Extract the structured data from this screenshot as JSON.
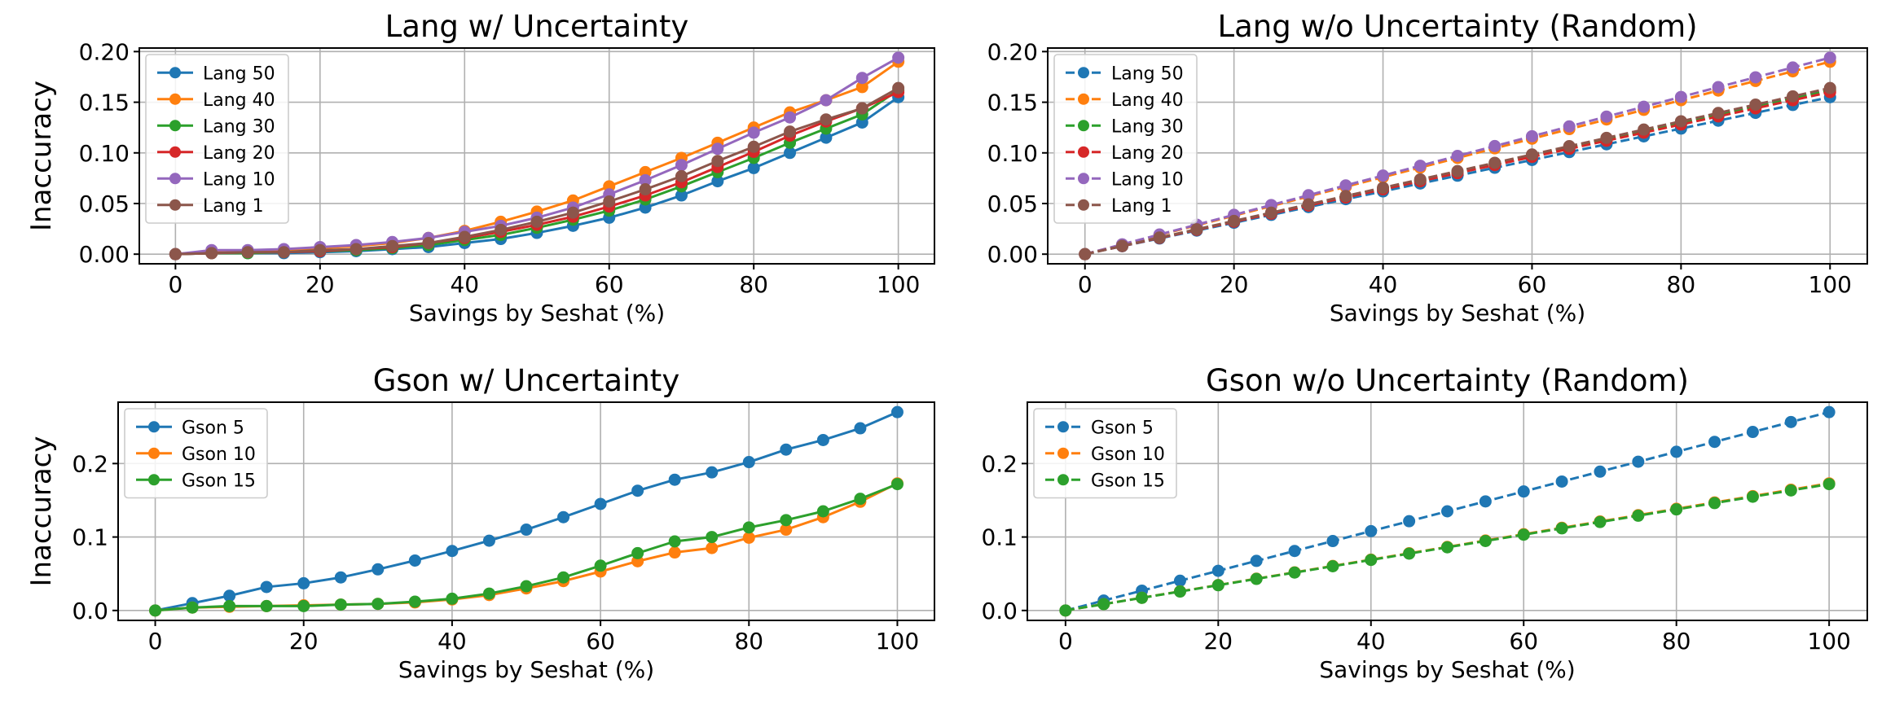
{
  "colors": {
    "blue": "#1f77b4",
    "orange": "#ff7f0e",
    "green": "#2ca02c",
    "red": "#d62728",
    "purple": "#9467bd",
    "brown": "#8c564b"
  },
  "chart_data": [
    {
      "type": "line",
      "title": "Lang w/ Uncertainty",
      "xlabel": "Savings by Seshat (%)",
      "ylabel": "Inaccuracy",
      "xlim": [
        -5,
        105
      ],
      "ylim": [
        -0.0095,
        0.2035
      ],
      "xticks": [
        0,
        20,
        40,
        60,
        80,
        100
      ],
      "yticks": [
        0.0,
        0.05,
        0.1,
        0.15,
        0.2
      ],
      "ytick_labels": [
        "0.00",
        "0.05",
        "0.10",
        "0.15",
        "0.20"
      ],
      "grid": true,
      "legend_position": "upper-left",
      "dashed": false,
      "x": [
        0,
        5,
        10,
        15,
        20,
        25,
        30,
        35,
        40,
        45,
        50,
        55,
        60,
        65,
        70,
        75,
        80,
        85,
        90,
        95,
        100
      ],
      "series": [
        {
          "name": "Lang 50",
          "color": "blue",
          "values": [
            0.0,
            0.001,
            0.001,
            0.001,
            0.002,
            0.003,
            0.005,
            0.007,
            0.011,
            0.015,
            0.021,
            0.028,
            0.036,
            0.046,
            0.058,
            0.072,
            0.085,
            0.1,
            0.115,
            0.13,
            0.155
          ]
        },
        {
          "name": "Lang 40",
          "color": "orange",
          "values": [
            0.0,
            0.003,
            0.003,
            0.004,
            0.006,
            0.008,
            0.011,
            0.016,
            0.023,
            0.032,
            0.042,
            0.053,
            0.067,
            0.081,
            0.095,
            0.11,
            0.125,
            0.14,
            0.152,
            0.165,
            0.19
          ]
        },
        {
          "name": "Lang 30",
          "color": "green",
          "values": [
            0.0,
            0.001,
            0.001,
            0.002,
            0.003,
            0.004,
            0.006,
            0.009,
            0.014,
            0.019,
            0.026,
            0.034,
            0.043,
            0.054,
            0.067,
            0.081,
            0.095,
            0.11,
            0.124,
            0.138,
            0.162
          ]
        },
        {
          "name": "Lang 20",
          "color": "red",
          "values": [
            0.0,
            0.001,
            0.002,
            0.002,
            0.003,
            0.005,
            0.007,
            0.011,
            0.016,
            0.022,
            0.029,
            0.037,
            0.047,
            0.058,
            0.071,
            0.086,
            0.101,
            0.117,
            0.131,
            0.144,
            0.16
          ]
        },
        {
          "name": "Lang 10",
          "color": "purple",
          "values": [
            0.0,
            0.004,
            0.004,
            0.005,
            0.007,
            0.009,
            0.012,
            0.016,
            0.022,
            0.028,
            0.036,
            0.046,
            0.059,
            0.073,
            0.088,
            0.104,
            0.12,
            0.135,
            0.152,
            0.174,
            0.194
          ]
        },
        {
          "name": "Lang 1",
          "color": "brown",
          "values": [
            0.0,
            0.001,
            0.002,
            0.002,
            0.004,
            0.005,
            0.008,
            0.011,
            0.017,
            0.024,
            0.032,
            0.041,
            0.052,
            0.064,
            0.077,
            0.092,
            0.106,
            0.121,
            0.133,
            0.144,
            0.164
          ]
        }
      ]
    },
    {
      "type": "line",
      "title": "Lang w/o Uncertainty (Random)",
      "xlabel": "Savings by Seshat (%)",
      "ylabel": "",
      "xlim": [
        -5,
        105
      ],
      "ylim": [
        -0.0095,
        0.2035
      ],
      "xticks": [
        0,
        20,
        40,
        60,
        80,
        100
      ],
      "yticks": [
        0.0,
        0.05,
        0.1,
        0.15,
        0.2
      ],
      "ytick_labels": [
        "0.00",
        "0.05",
        "0.10",
        "0.15",
        "0.20"
      ],
      "grid": true,
      "legend_position": "upper-left",
      "dashed": true,
      "x": [
        0,
        5,
        10,
        15,
        20,
        25,
        30,
        35,
        40,
        45,
        50,
        55,
        60,
        65,
        70,
        75,
        80,
        85,
        90,
        95,
        100
      ],
      "series": [
        {
          "name": "Lang 50",
          "color": "blue",
          "values": [
            0.0,
            0.0078,
            0.0155,
            0.0233,
            0.031,
            0.0388,
            0.0465,
            0.0543,
            0.062,
            0.0698,
            0.0775,
            0.0853,
            0.093,
            0.1008,
            0.1085,
            0.1163,
            0.124,
            0.1318,
            0.1395,
            0.1473,
            0.155
          ]
        },
        {
          "name": "Lang 40",
          "color": "orange",
          "values": [
            0.0,
            0.0095,
            0.019,
            0.0285,
            0.038,
            0.0475,
            0.057,
            0.0665,
            0.076,
            0.0855,
            0.095,
            0.1045,
            0.114,
            0.1235,
            0.133,
            0.1425,
            0.152,
            0.1615,
            0.171,
            0.1805,
            0.19
          ]
        },
        {
          "name": "Lang 30",
          "color": "green",
          "values": [
            0.0,
            0.0081,
            0.0162,
            0.0243,
            0.0324,
            0.0405,
            0.0486,
            0.0567,
            0.0648,
            0.0729,
            0.081,
            0.0891,
            0.0972,
            0.1053,
            0.1134,
            0.1215,
            0.1296,
            0.1377,
            0.1458,
            0.1539,
            0.162
          ]
        },
        {
          "name": "Lang 20",
          "color": "red",
          "values": [
            0.0,
            0.008,
            0.016,
            0.024,
            0.032,
            0.04,
            0.048,
            0.056,
            0.064,
            0.072,
            0.08,
            0.088,
            0.096,
            0.104,
            0.112,
            0.12,
            0.128,
            0.136,
            0.144,
            0.152,
            0.16
          ]
        },
        {
          "name": "Lang 10",
          "color": "purple",
          "values": [
            0.0,
            0.0097,
            0.0194,
            0.0291,
            0.0388,
            0.0485,
            0.0582,
            0.0679,
            0.0776,
            0.0873,
            0.097,
            0.1067,
            0.1164,
            0.1261,
            0.1358,
            0.1455,
            0.1552,
            0.1649,
            0.1746,
            0.1843,
            0.194
          ]
        },
        {
          "name": "Lang 1",
          "color": "brown",
          "values": [
            0.0,
            0.0082,
            0.0164,
            0.0246,
            0.0328,
            0.041,
            0.0492,
            0.0574,
            0.0656,
            0.0738,
            0.082,
            0.0902,
            0.0984,
            0.1066,
            0.1148,
            0.123,
            0.1312,
            0.1394,
            0.1476,
            0.1558,
            0.164
          ]
        }
      ]
    },
    {
      "type": "line",
      "title": "Gson w/ Uncertainty",
      "xlabel": "Savings by Seshat (%)",
      "ylabel": "Inaccuracy",
      "xlim": [
        -5,
        105
      ],
      "ylim": [
        -0.0135,
        0.2835
      ],
      "xticks": [
        0,
        20,
        40,
        60,
        80,
        100
      ],
      "yticks": [
        0.0,
        0.1,
        0.2
      ],
      "ytick_labels": [
        "0.0",
        "0.1",
        "0.2"
      ],
      "grid": true,
      "legend_position": "upper-left",
      "dashed": false,
      "x": [
        0,
        5,
        10,
        15,
        20,
        25,
        30,
        35,
        40,
        45,
        50,
        55,
        60,
        65,
        70,
        75,
        80,
        85,
        90,
        95,
        100
      ],
      "series": [
        {
          "name": "Gson 5",
          "color": "blue",
          "values": [
            0.0,
            0.01,
            0.02,
            0.032,
            0.037,
            0.045,
            0.056,
            0.068,
            0.081,
            0.095,
            0.11,
            0.127,
            0.145,
            0.163,
            0.178,
            0.188,
            0.202,
            0.219,
            0.232,
            0.248,
            0.27
          ]
        },
        {
          "name": "Gson 10",
          "color": "orange",
          "values": [
            0.0,
            0.004,
            0.005,
            0.006,
            0.007,
            0.008,
            0.009,
            0.011,
            0.015,
            0.021,
            0.03,
            0.04,
            0.053,
            0.067,
            0.079,
            0.085,
            0.099,
            0.11,
            0.127,
            0.148,
            0.173
          ]
        },
        {
          "name": "Gson 15",
          "color": "green",
          "values": [
            0.0,
            0.004,
            0.006,
            0.006,
            0.006,
            0.008,
            0.009,
            0.012,
            0.016,
            0.023,
            0.033,
            0.045,
            0.061,
            0.078,
            0.094,
            0.1,
            0.113,
            0.123,
            0.135,
            0.152,
            0.172
          ]
        }
      ]
    },
    {
      "type": "line",
      "title": "Gson w/o Uncertainty (Random)",
      "xlabel": "Savings by Seshat (%)",
      "ylabel": "",
      "xlim": [
        -5,
        105
      ],
      "ylim": [
        -0.0135,
        0.2835
      ],
      "xticks": [
        0,
        20,
        40,
        60,
        80,
        100
      ],
      "yticks": [
        0.0,
        0.1,
        0.2
      ],
      "ytick_labels": [
        "0.0",
        "0.1",
        "0.2"
      ],
      "grid": true,
      "legend_position": "upper-left",
      "dashed": true,
      "x": [
        0,
        5,
        10,
        15,
        20,
        25,
        30,
        35,
        40,
        45,
        50,
        55,
        60,
        65,
        70,
        75,
        80,
        85,
        90,
        95,
        100
      ],
      "series": [
        {
          "name": "Gson 5",
          "color": "blue",
          "values": [
            0.0,
            0.0135,
            0.027,
            0.0405,
            0.054,
            0.0675,
            0.081,
            0.0945,
            0.108,
            0.1215,
            0.135,
            0.1485,
            0.162,
            0.1755,
            0.189,
            0.2025,
            0.216,
            0.2295,
            0.243,
            0.2565,
            0.27
          ]
        },
        {
          "name": "Gson 10",
          "color": "orange",
          "values": [
            0.0,
            0.0087,
            0.0173,
            0.026,
            0.0346,
            0.0433,
            0.0519,
            0.0606,
            0.0692,
            0.0779,
            0.0865,
            0.0952,
            0.1038,
            0.1125,
            0.1211,
            0.1298,
            0.1384,
            0.1471,
            0.1557,
            0.1644,
            0.173
          ]
        },
        {
          "name": "Gson 15",
          "color": "green",
          "values": [
            0.0,
            0.0086,
            0.0172,
            0.0258,
            0.0344,
            0.043,
            0.0516,
            0.0602,
            0.0688,
            0.0774,
            0.086,
            0.0946,
            0.1032,
            0.1118,
            0.1204,
            0.129,
            0.1376,
            0.1462,
            0.1548,
            0.1634,
            0.172
          ]
        }
      ]
    }
  ]
}
